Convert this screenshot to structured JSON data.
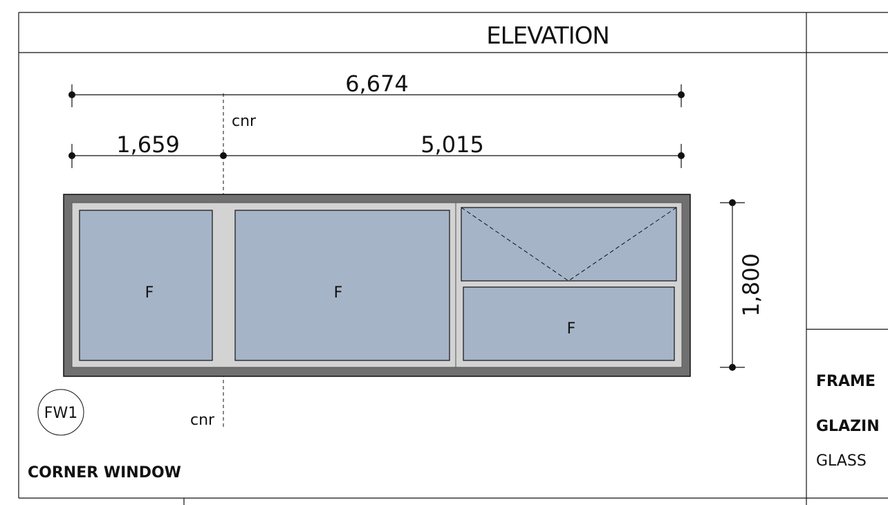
{
  "sheet": {
    "title": "ELEVATION",
    "window_name": "CORNER WINDOW",
    "window_tag": "FW1",
    "side_labels": {
      "frame": "FRAME",
      "glazing": "GLAZIN",
      "glass": "GLASS"
    }
  },
  "dimensions": {
    "overall_width": "6,674",
    "left_width": "1,659",
    "right_width": "5,015",
    "height": "1,800",
    "corner_label_top": "cnr",
    "corner_label_bottom": "cnr"
  },
  "panes": [
    {
      "label": "F"
    },
    {
      "label": "F"
    },
    {
      "label": ""
    },
    {
      "label": "F"
    }
  ],
  "colors": {
    "outer_frame": "#707070",
    "inner_frame": "#d3d3d3",
    "glass": "#a6b4c8",
    "line": "#111111"
  }
}
